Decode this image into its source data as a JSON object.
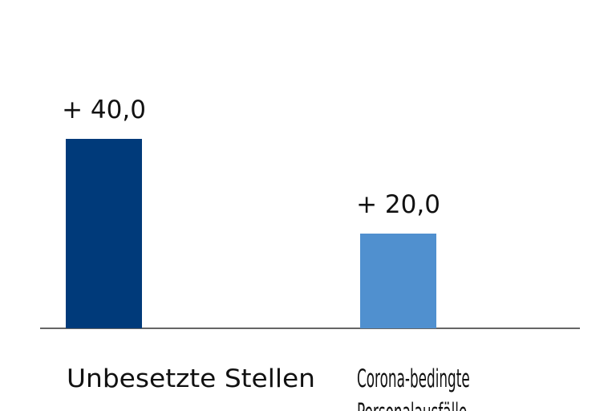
{
  "chart_data": {
    "type": "bar",
    "categories": [
      "Unbesetzte Stellen",
      "Corona-bedingte Personalausfälle"
    ],
    "category_lines": [
      [
        "Unbesetzte Stellen"
      ],
      [
        "Corona-bedingte",
        "Personalausfälle"
      ]
    ],
    "values": [
      40.0,
      20.0
    ],
    "data_labels": [
      "+ 40,0",
      "+ 20,0"
    ],
    "colors": [
      "#003a7a",
      "#5090cf"
    ],
    "ylim": [
      0,
      50
    ],
    "grid": false,
    "axis_color": "#333333"
  }
}
